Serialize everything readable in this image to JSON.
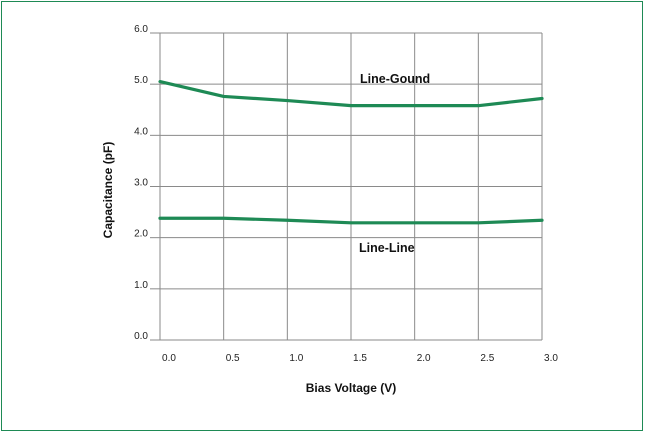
{
  "chart_data": {
    "type": "line",
    "title": "",
    "xlabel": "Bias Voltage (V)",
    "ylabel": "Capacitance (pF)",
    "xlim": [
      0.0,
      3.0
    ],
    "ylim": [
      0.0,
      6.0
    ],
    "x_ticks": [
      "0.0",
      "0.5",
      "1.0",
      "1.5",
      "2.0",
      "2.5",
      "3.0"
    ],
    "y_ticks": [
      "0.0",
      "1.0",
      "2.0",
      "3.0",
      "4.0",
      "5.0",
      "6.0"
    ],
    "grid": true,
    "legend": "none",
    "line_color": "#1e8a55",
    "frame_color": "#1e8a55",
    "series": [
      {
        "name": "Line-Gound",
        "x": [
          0.0,
          0.5,
          1.0,
          1.5,
          2.0,
          2.5,
          3.0
        ],
        "y": [
          5.05,
          4.76,
          4.68,
          4.58,
          4.58,
          4.58,
          4.72
        ]
      },
      {
        "name": "Line-Line",
        "x": [
          0.0,
          0.5,
          1.0,
          1.5,
          2.0,
          2.5,
          3.0
        ],
        "y": [
          2.38,
          2.38,
          2.34,
          2.29,
          2.29,
          2.29,
          2.34
        ]
      }
    ]
  }
}
